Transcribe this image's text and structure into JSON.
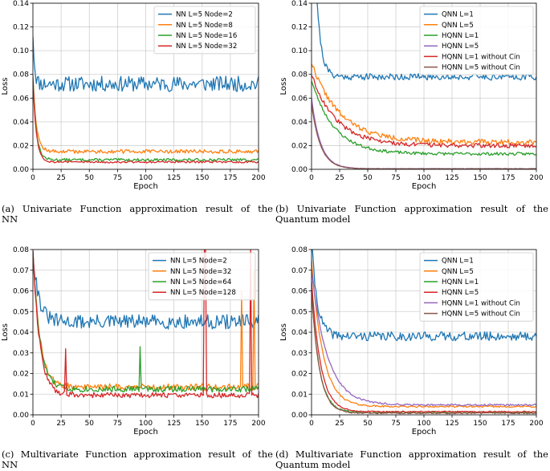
{
  "captions": [
    {
      "line1": "(a)  Univariate Function approximation result of the",
      "line2": "NN"
    },
    {
      "line1": "(b)  Univariate Function approximation result of the",
      "line2": "Quantum model"
    },
    {
      "line1": "(c)  Multivariate Function approximation result of the",
      "line2": "NN"
    },
    {
      "line1": "(d)  Multivariate Function approximation result of the",
      "line2": "Quantum model"
    }
  ],
  "chart_data": [
    {
      "type": "line",
      "xlabel": "Epoch",
      "ylabel": "Loss",
      "xlim": [
        0,
        200
      ],
      "ylim": [
        0,
        0.14
      ],
      "xticks": [
        0,
        25,
        50,
        75,
        100,
        125,
        150,
        175,
        200
      ],
      "yticks": [
        0.0,
        0.02,
        0.04,
        0.06,
        0.08,
        0.1,
        0.12,
        0.14
      ],
      "ytick_labels": [
        "0.00",
        "0.02",
        "0.04",
        "0.06",
        "0.08",
        "0.10",
        "0.12",
        "0.14"
      ],
      "grid": true,
      "legend_position": "top-right",
      "series": [
        {
          "name": "NN L=5 Node=2",
          "color": "#1f77b4",
          "start": 0.115,
          "plateau": 0.072,
          "decay": 1.5,
          "noise": 0.0065,
          "seed": 11
        },
        {
          "name": "NN L=5 Node=8",
          "color": "#ff7f0e",
          "start": 0.08,
          "plateau": 0.015,
          "decay": 3,
          "noise": 0.0016,
          "seed": 12
        },
        {
          "name": "NN L=5 Node=16",
          "color": "#2ca02c",
          "start": 0.078,
          "plateau": 0.008,
          "decay": 3,
          "noise": 0.0011,
          "seed": 13
        },
        {
          "name": "NN L=5 Node=32",
          "color": "#d62728",
          "start": 0.075,
          "plateau": 0.0062,
          "decay": 3,
          "noise": 0.0009,
          "seed": 14
        }
      ]
    },
    {
      "type": "line",
      "xlabel": "Epoch",
      "ylabel": "Loss",
      "xlim": [
        0,
        200
      ],
      "ylim": [
        0,
        0.14
      ],
      "xticks": [
        0,
        25,
        50,
        75,
        100,
        125,
        150,
        175,
        200
      ],
      "yticks": [
        0.0,
        0.02,
        0.04,
        0.06,
        0.08,
        0.1,
        0.12,
        0.14
      ],
      "ytick_labels": [
        "0.00",
        "0.02",
        "0.04",
        "0.06",
        "0.08",
        "0.10",
        "0.12",
        "0.14"
      ],
      "grid": true,
      "legend_position": "top-right",
      "series": [
        {
          "name": "QNN L=1",
          "color": "#1f77b4",
          "start": 0.3,
          "plateau": 0.078,
          "decay": 4,
          "noise": 0.0028,
          "seed": 21
        },
        {
          "name": "QNN L=5",
          "color": "#ff7f0e",
          "start": 0.09,
          "plateau": 0.023,
          "decay": 25,
          "noise": 0.0022,
          "seed": 22
        },
        {
          "name": "HQNN L=1",
          "color": "#2ca02c",
          "start": 0.075,
          "plateau": 0.013,
          "decay": 20,
          "noise": 0.0013,
          "seed": 23
        },
        {
          "name": "HQNN L=5",
          "color": "#9467bd",
          "start": 0.06,
          "plateau": 0.0005,
          "decay": 8,
          "noise": 0.0002,
          "seed": 24
        },
        {
          "name": "HQNN L=1 without Cin",
          "color": "#d62728",
          "start": 0.08,
          "plateau": 0.02,
          "decay": 22,
          "noise": 0.0018,
          "seed": 25
        },
        {
          "name": "HQNN L=5 without Cin",
          "color": "#8c564b",
          "start": 0.055,
          "plateau": 0.0004,
          "decay": 8,
          "noise": 0.0002,
          "seed": 26
        }
      ]
    },
    {
      "type": "line",
      "xlabel": "Epoch",
      "ylabel": "Loss",
      "xlim": [
        0,
        200
      ],
      "ylim": [
        0,
        0.08
      ],
      "xticks": [
        0,
        25,
        50,
        75,
        100,
        125,
        150,
        175,
        200
      ],
      "yticks": [
        0.0,
        0.01,
        0.02,
        0.03,
        0.04,
        0.05,
        0.06,
        0.07,
        0.08
      ],
      "ytick_labels": [
        "0.00",
        "0.01",
        "0.02",
        "0.03",
        "0.04",
        "0.05",
        "0.06",
        "0.07",
        "0.08"
      ],
      "grid": true,
      "legend_position": "top-right",
      "series": [
        {
          "name": "NN L=5 Node=2",
          "color": "#1f77b4",
          "start": 0.08,
          "plateau": 0.045,
          "decay": 5,
          "noise": 0.0035,
          "seed": 31
        },
        {
          "name": "NN L=5 Node=32",
          "color": "#ff7f0e",
          "start": 0.08,
          "plateau": 0.0135,
          "decay": 6,
          "noise": 0.0016,
          "seed": 32,
          "spikes": [
            [
              185,
              0.06
            ],
            [
              196,
              0.07
            ]
          ]
        },
        {
          "name": "NN L=5 Node=64",
          "color": "#2ca02c",
          "start": 0.08,
          "plateau": 0.0125,
          "decay": 6,
          "noise": 0.0015,
          "seed": 33,
          "spikes": [
            [
              95,
              0.033
            ]
          ]
        },
        {
          "name": "NN L=5 Node=128",
          "color": "#d62728",
          "start": 0.08,
          "plateau": 0.0095,
          "decay": 6,
          "noise": 0.0013,
          "seed": 34,
          "spikes": [
            [
              29,
              0.032
            ],
            [
              152,
              0.08
            ],
            [
              153,
              0.08
            ],
            [
              193,
              0.08
            ]
          ]
        }
      ]
    },
    {
      "type": "line",
      "xlabel": "Epoch",
      "ylabel": "Loss",
      "xlim": [
        0,
        200
      ],
      "ylim": [
        0,
        0.08
      ],
      "xticks": [
        0,
        25,
        50,
        75,
        100,
        125,
        150,
        175,
        200
      ],
      "yticks": [
        0.0,
        0.01,
        0.02,
        0.03,
        0.04,
        0.05,
        0.06,
        0.07,
        0.08
      ],
      "ytick_labels": [
        "0.00",
        "0.01",
        "0.02",
        "0.03",
        "0.04",
        "0.05",
        "0.06",
        "0.07",
        "0.08"
      ],
      "grid": true,
      "legend_position": "top-right",
      "series": [
        {
          "name": "QNN L=1",
          "color": "#1f77b4",
          "start": 0.085,
          "plateau": 0.038,
          "decay": 5,
          "noise": 0.0022,
          "seed": 41
        },
        {
          "name": "QNN L=5",
          "color": "#ff7f0e",
          "start": 0.075,
          "plateau": 0.004,
          "decay": 10,
          "noise": 0.0004,
          "seed": 42
        },
        {
          "name": "HQNN L=1",
          "color": "#2ca02c",
          "start": 0.06,
          "plateau": 0.0012,
          "decay": 7,
          "noise": 0.0004,
          "seed": 43
        },
        {
          "name": "HQNN L=5",
          "color": "#d62728",
          "start": 0.065,
          "plateau": 0.0015,
          "decay": 8,
          "noise": 0.0003,
          "seed": 44
        },
        {
          "name": "HQNN L=1 without Cin",
          "color": "#9467bd",
          "start": 0.07,
          "plateau": 0.0048,
          "decay": 14,
          "noise": 0.0004,
          "seed": 45
        },
        {
          "name": "HQNN L=5 without Cin",
          "color": "#8c564b",
          "start": 0.06,
          "plateau": 0.0008,
          "decay": 7,
          "noise": 0.0003,
          "seed": 46
        }
      ]
    }
  ]
}
